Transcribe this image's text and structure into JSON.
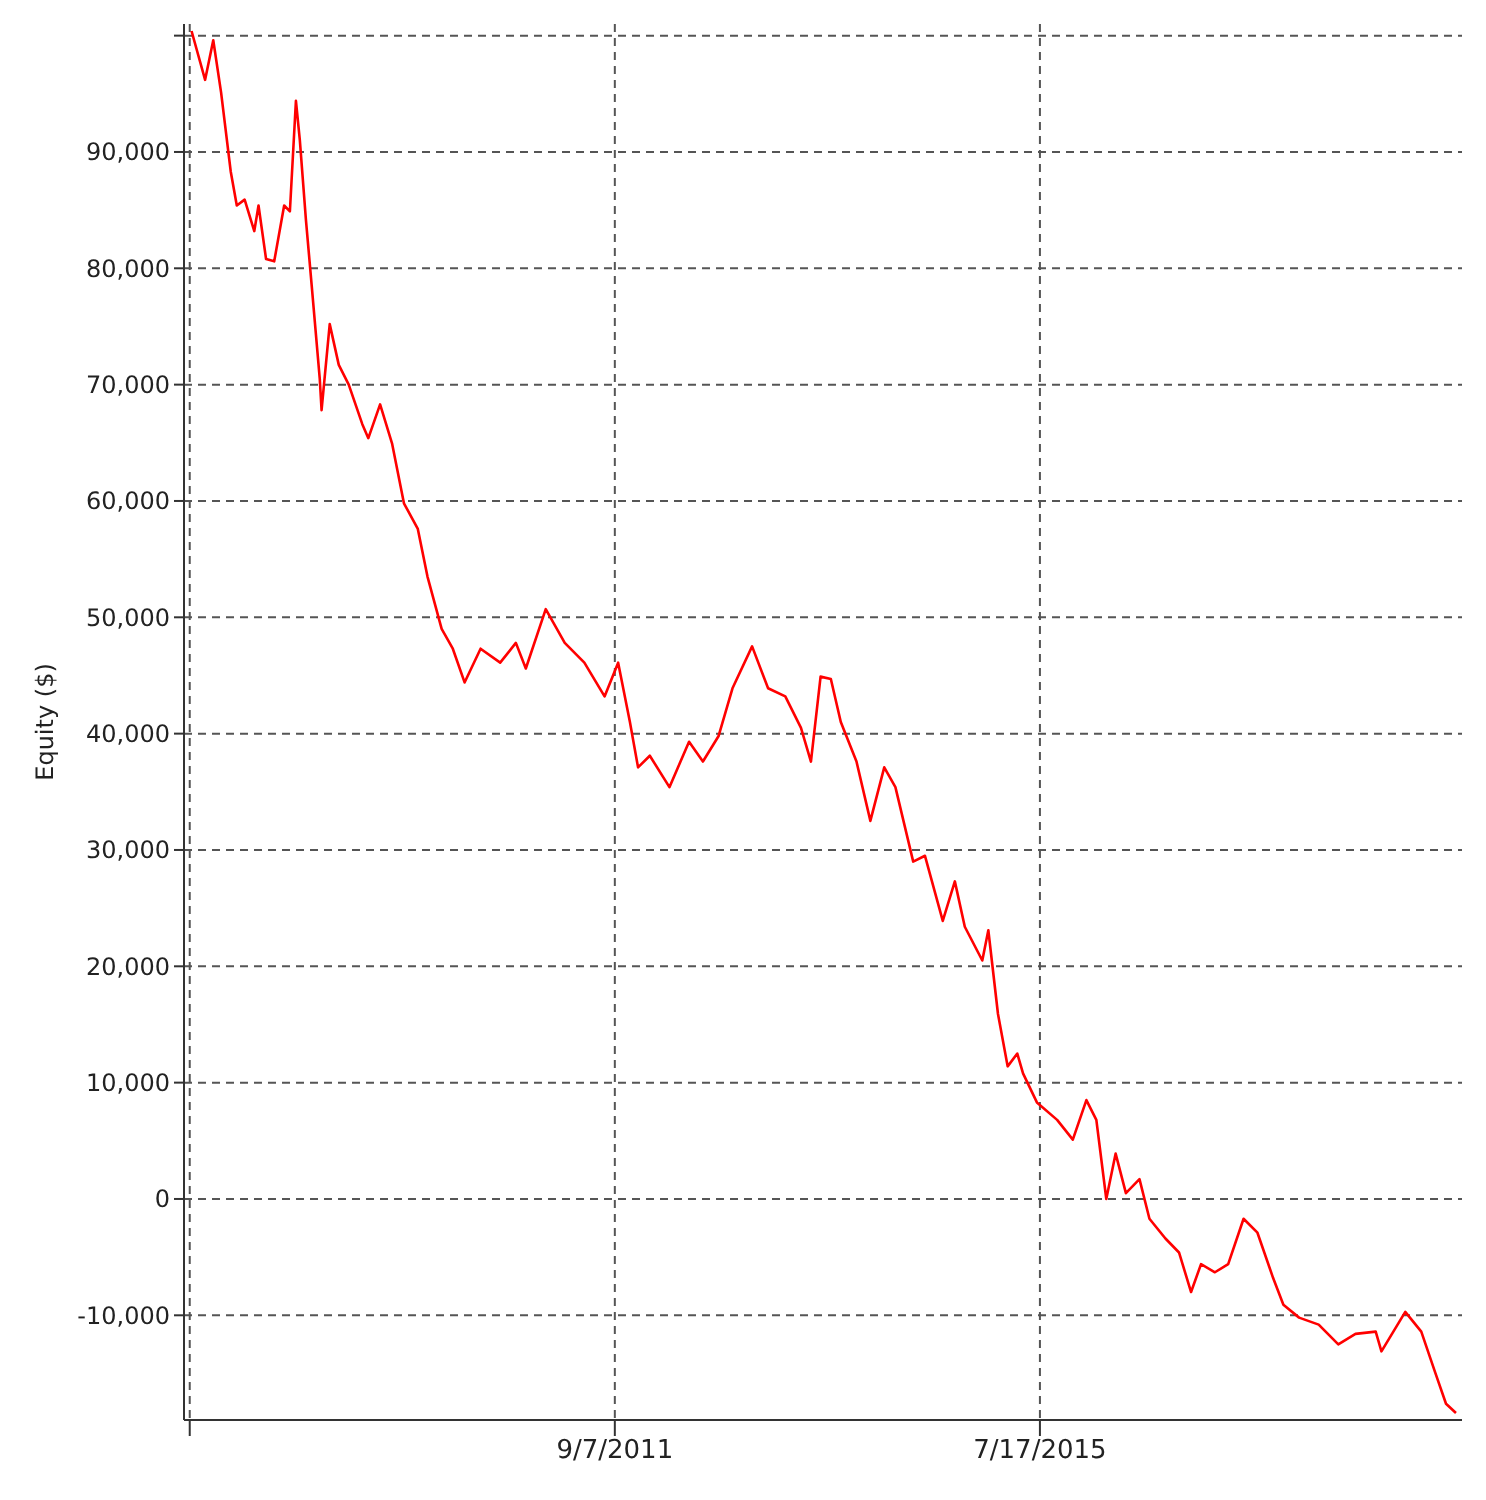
{
  "chart_data": {
    "type": "line",
    "ylabel": "Equity ($)",
    "x": [
      "2007-11-04",
      "2007-12-19",
      "2008-01-15",
      "2008-02-10",
      "2008-03-13",
      "2008-04-02",
      "2008-04-28",
      "2008-05-30",
      "2008-06-13",
      "2008-07-08",
      "2008-08-04",
      "2008-09-06",
      "2008-09-25",
      "2008-10-15",
      "2008-10-28",
      "2008-11-17",
      "2008-12-06",
      "2009-01-02",
      "2009-01-08",
      "2009-02-04",
      "2009-03-06",
      "2009-04-08",
      "2009-05-23",
      "2009-06-12",
      "2009-07-21",
      "2009-08-30",
      "2009-10-08",
      "2009-11-23",
      "2009-12-25",
      "2010-02-10",
      "2010-03-19",
      "2010-04-27",
      "2010-06-19",
      "2010-08-23",
      "2010-10-14",
      "2010-11-16",
      "2011-01-21",
      "2011-03-25",
      "2011-05-29",
      "2011-08-04",
      "2011-09-18",
      "2011-10-27",
      "2011-11-23",
      "2012-01-01",
      "2012-03-06",
      "2012-05-10",
      "2012-06-25",
      "2012-08-16",
      "2012-10-01",
      "2012-12-05",
      "2013-01-27",
      "2013-03-25",
      "2013-05-16",
      "2013-06-18",
      "2013-07-20",
      "2013-08-23",
      "2013-09-25",
      "2013-11-16",
      "2014-01-01",
      "2014-02-16",
      "2014-03-25",
      "2014-05-23",
      "2014-07-01",
      "2014-08-29",
      "2014-10-08",
      "2014-11-10",
      "2015-01-07",
      "2015-01-27",
      "2015-02-28",
      "2015-04-01",
      "2015-05-03",
      "2015-05-22",
      "2015-07-07",
      "2015-09-12",
      "2015-11-03",
      "2015-12-18",
      "2016-01-20",
      "2016-02-22",
      "2016-03-24",
      "2016-04-27",
      "2016-06-11",
      "2016-07-14",
      "2016-09-05",
      "2016-10-20",
      "2016-11-29",
      "2017-01-01",
      "2017-02-16",
      "2017-04-01",
      "2017-05-22",
      "2017-07-07",
      "2017-08-28",
      "2017-10-01",
      "2017-11-22",
      "2018-01-26",
      "2018-04-01",
      "2018-05-28",
      "2018-08-03",
      "2018-08-22",
      "2018-11-09",
      "2019-01-01",
      "2019-02-16",
      "2019-03-24",
      "2019-04-26"
    ],
    "series": [
      {
        "color": "#ff0000",
        "values": [
          100400,
          96200,
          99600,
          95100,
          88300,
          85400,
          85900,
          83200,
          85400,
          80800,
          80600,
          85400,
          84900,
          94400,
          91000,
          84200,
          78600,
          70500,
          67800,
          75200,
          71700,
          70000,
          66600,
          65400,
          68300,
          64900,
          59800,
          57600,
          53500,
          49000,
          47300,
          44400,
          47300,
          46100,
          47800,
          45600,
          50700,
          47800,
          46100,
          43200,
          46100,
          41000,
          37100,
          38100,
          35400,
          39300,
          37600,
          39800,
          43900,
          47500,
          43900,
          43200,
          40500,
          37600,
          44900,
          44700,
          41000,
          37600,
          32500,
          37100,
          35400,
          29000,
          29500,
          23900,
          27300,
          23400,
          20500,
          23100,
          15900,
          11400,
          12500,
          10800,
          8300,
          6800,
          5100,
          8500,
          6800,
          0,
          3900,
          500,
          1700,
          -1700,
          -3400,
          -4600,
          -8000,
          -5600,
          -6300,
          -5600,
          -1700,
          -2900,
          -6800,
          -9100,
          -10200,
          -10800,
          -12500,
          -11600,
          -11400,
          -13100,
          -9700,
          -11400,
          -14900,
          -17600,
          -18400
        ]
      }
    ],
    "xlim": [
      "2007-10-10",
      "2019-05-16"
    ],
    "xticks": [
      {
        "value": "2007-10-29",
        "label": null
      },
      {
        "value": "2011-09-07",
        "label": "9/7/2011"
      },
      {
        "value": "2015-07-17",
        "label": "7/17/2015"
      }
    ],
    "ylim": [
      -19000,
      101000
    ],
    "yticks": [
      {
        "value": -10000,
        "label": "-10,000"
      },
      0,
      {
        "value": 10000,
        "label": "10,000"
      },
      {
        "value": 20000,
        "label": "20,000"
      },
      {
        "value": 30000,
        "label": "30,000"
      },
      {
        "value": 40000,
        "label": "40,000"
      },
      {
        "value": 50000,
        "label": "50,000"
      },
      {
        "value": 60000,
        "label": "60,000"
      },
      {
        "value": 70000,
        "label": "70,000"
      },
      {
        "value": 80000,
        "label": "80,000"
      },
      {
        "value": 90000,
        "label": "90,000"
      },
      {
        "value": 100000,
        "label": null
      }
    ],
    "grid": true,
    "legend": false,
    "marker": "none",
    "line_style": "solid"
  }
}
